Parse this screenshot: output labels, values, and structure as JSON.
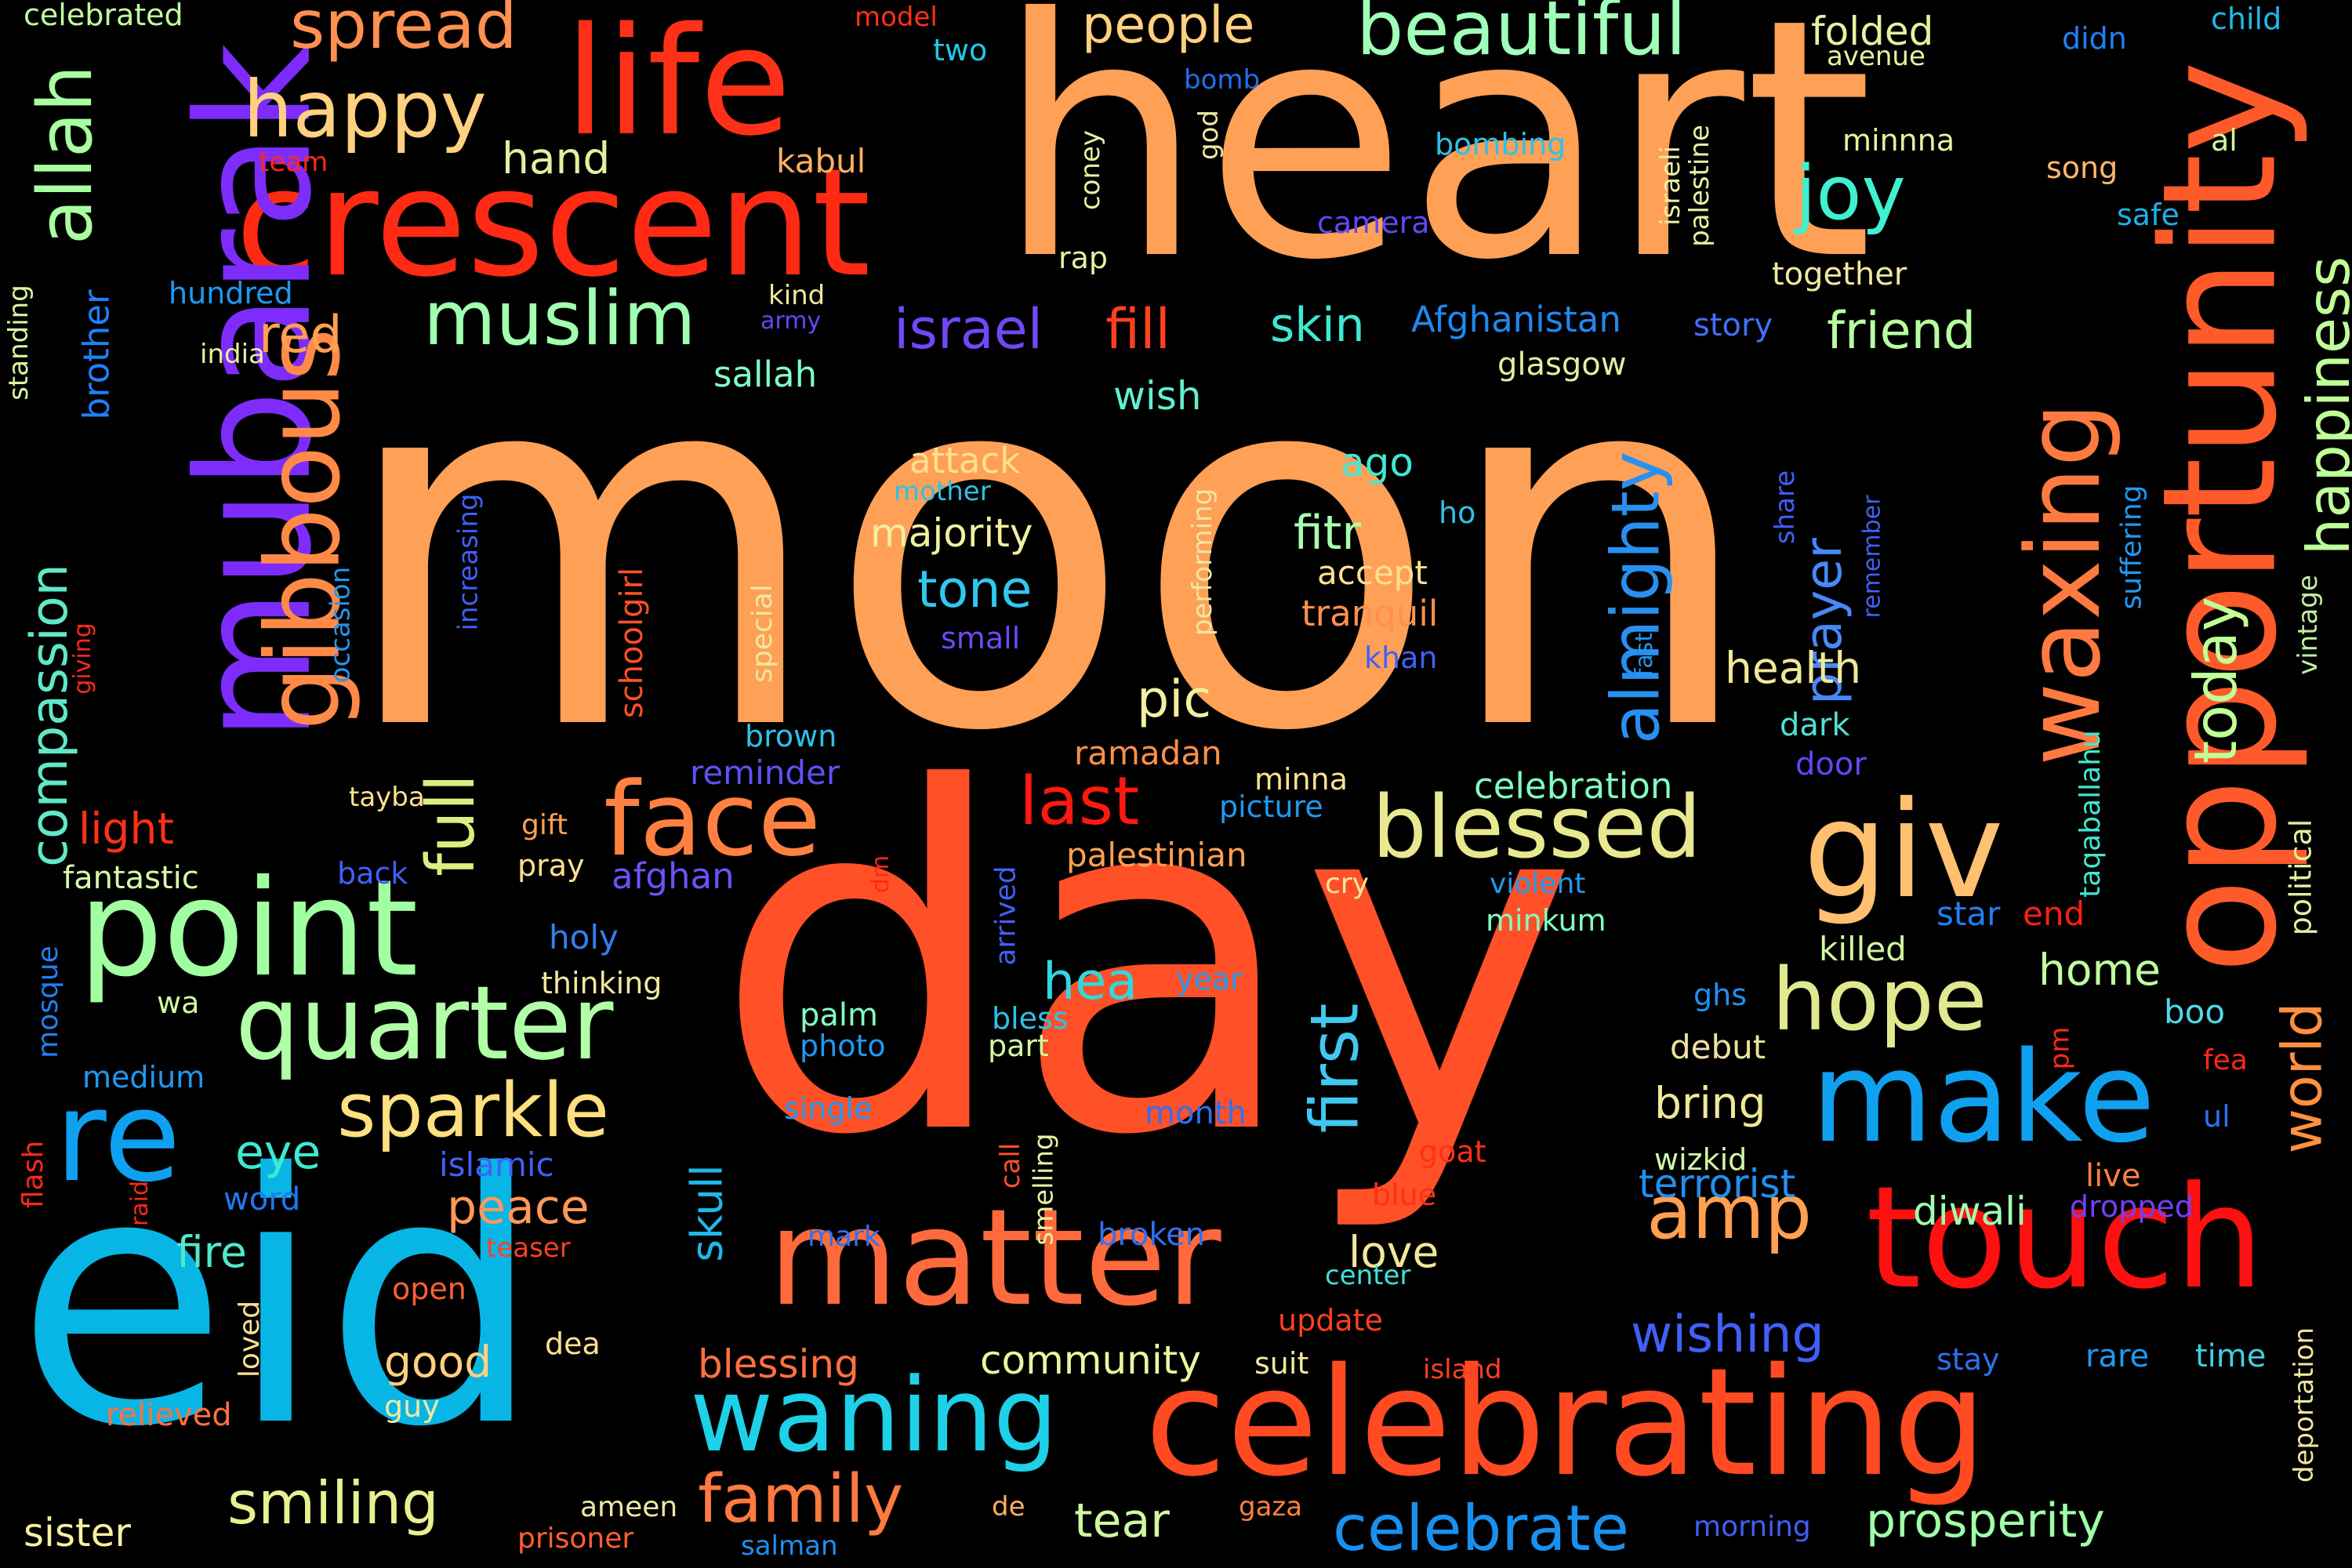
{
  "words": [
    {
      "text": "moon",
      "color": "#ffa057"
    },
    {
      "text": "day",
      "color": "#ff5028"
    },
    {
      "text": "heart",
      "color": "#ffa057"
    },
    {
      "text": "eid",
      "color": "#08b6e6"
    },
    {
      "text": "crescent",
      "color": "#ff2a14"
    },
    {
      "text": "mubarak",
      "color": "#7d2cfc"
    },
    {
      "text": "life",
      "color": "#ff3018"
    },
    {
      "text": "celebrating",
      "color": "#ff4a22"
    },
    {
      "text": "opportunity",
      "color": "#ff5a2a"
    },
    {
      "text": "touch",
      "color": "#ff1010"
    },
    {
      "text": "point",
      "color": "#a0ffa0"
    },
    {
      "text": "matter",
      "color": "#ff6a3c"
    },
    {
      "text": "giv",
      "color": "#ffc070"
    },
    {
      "text": "make",
      "color": "#10a0f0"
    },
    {
      "text": "face",
      "color": "#ff8040"
    },
    {
      "text": "waning",
      "color": "#1ed0e8"
    },
    {
      "text": "quarter",
      "color": "#b0ffa6"
    },
    {
      "text": "re",
      "color": "#10a0f0"
    },
    {
      "text": "gibbous",
      "color": "#ff8a48"
    },
    {
      "text": "waxing",
      "color": "#ff7a40"
    },
    {
      "text": "blessed",
      "color": "#e8e890"
    },
    {
      "text": "hope",
      "color": "#e0e890"
    },
    {
      "text": "happy",
      "color": "#ffd080"
    },
    {
      "text": "sparkle",
      "color": "#ffe080"
    },
    {
      "text": "beautiful",
      "color": "#a0ffb8"
    },
    {
      "text": "spread",
      "color": "#ff9050"
    },
    {
      "text": "muslim",
      "color": "#a0ffb0"
    },
    {
      "text": "joy",
      "color": "#40f0d0"
    },
    {
      "text": "allah",
      "color": "#a8ffa0"
    },
    {
      "text": "amp",
      "color": "#ffa050"
    },
    {
      "text": "family",
      "color": "#ff7a40"
    },
    {
      "text": "celebrate",
      "color": "#1890f0"
    },
    {
      "text": "full",
      "color": "#d8f080"
    },
    {
      "text": "last",
      "color": "#ff1810"
    },
    {
      "text": "almighty",
      "color": "#2890f0"
    },
    {
      "text": "today",
      "color": "#c0ff98"
    },
    {
      "text": "happiness",
      "color": "#c0ff98"
    },
    {
      "text": "smiling",
      "color": "#e8f090"
    },
    {
      "text": "first",
      "color": "#40c8f0"
    },
    {
      "text": "world",
      "color": "#ff9040"
    },
    {
      "text": "wishing",
      "color": "#4060f8"
    },
    {
      "text": "compassion",
      "color": "#60e8c8"
    },
    {
      "text": "prayer",
      "color": "#4888f8"
    },
    {
      "text": "fill",
      "color": "#ff4020"
    },
    {
      "text": "israel",
      "color": "#7048f8"
    },
    {
      "text": "prosperity",
      "color": "#a0ffa8"
    },
    {
      "text": "friend",
      "color": "#b8ffa0"
    },
    {
      "text": "red",
      "color": "#ffa050"
    },
    {
      "text": "people",
      "color": "#ffd080"
    },
    {
      "text": "hea",
      "color": "#30d8e0"
    },
    {
      "text": "tone",
      "color": "#30c8f0"
    },
    {
      "text": "peace",
      "color": "#ff9858"
    },
    {
      "text": "pic",
      "color": "#f0f0a0"
    },
    {
      "text": "eye",
      "color": "#40e8d0"
    },
    {
      "text": "tear",
      "color": "#d0f8a0"
    },
    {
      "text": "fitr",
      "color": "#a8ffb0"
    },
    {
      "text": "skin",
      "color": "#40e8d0"
    },
    {
      "text": "light",
      "color": "#ff3018"
    },
    {
      "text": "skull",
      "color": "#20b8e8"
    },
    {
      "text": "hand",
      "color": "#e0f0a0"
    },
    {
      "text": "home",
      "color": "#c0ffa0"
    },
    {
      "text": "bring",
      "color": "#f0e898"
    },
    {
      "text": "love",
      "color": "#f0e898"
    },
    {
      "text": "fire",
      "color": "#50e8c8"
    },
    {
      "text": "health",
      "color": "#f0e898"
    },
    {
      "text": "terrorist",
      "color": "#2090f0"
    },
    {
      "text": "diwali",
      "color": "#a0ffb0"
    },
    {
      "text": "good",
      "color": "#ffd080"
    },
    {
      "text": "blessing",
      "color": "#ff7040"
    },
    {
      "text": "community",
      "color": "#e8f8a0"
    },
    {
      "text": "sister",
      "color": "#f8f0a0"
    },
    {
      "text": "wish",
      "color": "#60f0d0"
    },
    {
      "text": "Afghanistan",
      "color": "#2088f0"
    },
    {
      "text": "folded",
      "color": "#e8f0a0"
    },
    {
      "text": "ago",
      "color": "#40e8d0"
    },
    {
      "text": "majority",
      "color": "#f0f0a0"
    },
    {
      "text": "attack",
      "color": "#ffe090"
    },
    {
      "text": "celebration",
      "color": "#80ffc0"
    },
    {
      "text": "sallah",
      "color": "#80ffc8"
    },
    {
      "text": "brother",
      "color": "#2080f8"
    },
    {
      "text": "ramadan",
      "color": "#ff9048"
    },
    {
      "text": "palestinian",
      "color": "#ffa050"
    },
    {
      "text": "afghan",
      "color": "#7050f8"
    },
    {
      "text": "reminder",
      "color": "#6050f8"
    },
    {
      "text": "accept",
      "color": "#ffe090"
    },
    {
      "text": "tranquil",
      "color": "#ff9050"
    },
    {
      "text": "killed",
      "color": "#d0f8a0"
    },
    {
      "text": "boo",
      "color": "#50d8e8"
    },
    {
      "text": "debut",
      "color": "#f0e0a0"
    },
    {
      "text": "wizkid",
      "color": "#d0f8a8"
    },
    {
      "text": "dropped",
      "color": "#7040f8"
    },
    {
      "text": "live",
      "color": "#ff8040"
    },
    {
      "text": "islamic",
      "color": "#4060f8"
    },
    {
      "text": "word",
      "color": "#2078f0"
    },
    {
      "text": "broken",
      "color": "#3070f0"
    },
    {
      "text": "month",
      "color": "#3070f0"
    },
    {
      "text": "star",
      "color": "#2080f0"
    },
    {
      "text": "end",
      "color": "#ff2010"
    },
    {
      "text": "political",
      "color": "#e0f0a0"
    },
    {
      "text": "vintage",
      "color": "#c0f0a0"
    },
    {
      "text": "suffering",
      "color": "#2098f0"
    },
    {
      "text": "taqaballahu",
      "color": "#40e8d0"
    },
    {
      "text": "door",
      "color": "#6048f8"
    },
    {
      "text": "dark",
      "color": "#50e0d8"
    },
    {
      "text": "minnna",
      "color": "#e8f0a0"
    },
    {
      "text": "song",
      "color": "#ffb868"
    },
    {
      "text": "al",
      "color": "#d0f8a0"
    },
    {
      "text": "safe",
      "color": "#20b0e8"
    },
    {
      "text": "together",
      "color": "#f0e8a0"
    },
    {
      "text": "story",
      "color": "#4070f8"
    },
    {
      "text": "glasgow",
      "color": "#e0f0a0"
    },
    {
      "text": "child",
      "color": "#20b8e8"
    },
    {
      "text": "didn",
      "color": "#2080f0"
    },
    {
      "text": "avenue",
      "color": "#e8f0a0"
    },
    {
      "text": "bomb",
      "color": "#2070f0"
    },
    {
      "text": "model",
      "color": "#ff3018"
    },
    {
      "text": "two",
      "color": "#20c8e8"
    },
    {
      "text": "kabul",
      "color": "#ffb060"
    },
    {
      "text": "team",
      "color": "#ff2818"
    },
    {
      "text": "hundred",
      "color": "#2098f0"
    },
    {
      "text": "kind",
      "color": "#f0e8a0"
    },
    {
      "text": "army",
      "color": "#6048f8"
    },
    {
      "text": "india",
      "color": "#e8f0a0"
    },
    {
      "text": "celebrated",
      "color": "#c0ffa0"
    },
    {
      "text": "standing",
      "color": "#d8f8a0"
    },
    {
      "text": "mosque",
      "color": "#2080f0"
    },
    {
      "text": "flash",
      "color": "#ff2818"
    },
    {
      "text": "raid",
      "color": "#ff2818"
    },
    {
      "text": "giving",
      "color": "#ff2818"
    },
    {
      "text": "occasion",
      "color": "#2098f0"
    },
    {
      "text": "increasing",
      "color": "#4060f8"
    },
    {
      "text": "schoolgirl",
      "color": "#ff5028"
    },
    {
      "text": "special",
      "color": "#f0e8a0"
    },
    {
      "text": "brown",
      "color": "#30c0e8"
    },
    {
      "text": "fantastic",
      "color": "#d8f8a8"
    },
    {
      "text": "back",
      "color": "#4060f8"
    },
    {
      "text": "tayba",
      "color": "#ffe090"
    },
    {
      "text": "gift",
      "color": "#ffa050"
    },
    {
      "text": "pray",
      "color": "#ffe090"
    },
    {
      "text": "dm",
      "color": "#ff2818"
    },
    {
      "text": "holy",
      "color": "#3080f0"
    },
    {
      "text": "thinking",
      "color": "#f0e8a0"
    },
    {
      "text": "wa",
      "color": "#d0f8a0"
    },
    {
      "text": "medium",
      "color": "#2098f0"
    },
    {
      "text": "open",
      "color": "#ff6030"
    },
    {
      "text": "teaser",
      "color": "#ff4020"
    },
    {
      "text": "relieved",
      "color": "#ff7040"
    },
    {
      "text": "loved",
      "color": "#ffe090"
    },
    {
      "text": "dea",
      "color": "#ffe090"
    },
    {
      "text": "guy",
      "color": "#f0e8a0"
    },
    {
      "text": "ameen",
      "color": "#f0e8a0"
    },
    {
      "text": "prisoner",
      "color": "#ff6030"
    },
    {
      "text": "salman",
      "color": "#2090f0"
    },
    {
      "text": "de",
      "color": "#ffb060"
    },
    {
      "text": "gaza",
      "color": "#ff8040"
    },
    {
      "text": "suit",
      "color": "#f0e8a0"
    },
    {
      "text": "island",
      "color": "#ff4020"
    },
    {
      "text": "update",
      "color": "#ff4020"
    },
    {
      "text": "center",
      "color": "#40e0d8"
    },
    {
      "text": "morning",
      "color": "#4060f8"
    },
    {
      "text": "stay",
      "color": "#3070f0"
    },
    {
      "text": "rare",
      "color": "#2098f0"
    },
    {
      "text": "time",
      "color": "#40d0e0"
    },
    {
      "text": "deportation",
      "color": "#f0e8a0"
    },
    {
      "text": "fea",
      "color": "#ff2818"
    },
    {
      "text": "ul",
      "color": "#3070f0"
    },
    {
      "text": "pm",
      "color": "#ff2818"
    },
    {
      "text": "ghs",
      "color": "#2090f0"
    },
    {
      "text": "goat",
      "color": "#ff3018"
    },
    {
      "text": "blue",
      "color": "#ff3018"
    },
    {
      "text": "smelling",
      "color": "#e8f0a0"
    },
    {
      "text": "call",
      "color": "#ff5028"
    },
    {
      "text": "mark",
      "color": "#3070f0"
    },
    {
      "text": "single",
      "color": "#2098f0"
    },
    {
      "text": "photo",
      "color": "#2098f0"
    },
    {
      "text": "palm",
      "color": "#80ffc0"
    },
    {
      "text": "bless",
      "color": "#30c0e8"
    },
    {
      "text": "part",
      "color": "#d0f8a0"
    },
    {
      "text": "arrived",
      "color": "#4060f8"
    },
    {
      "text": "year",
      "color": "#2098f0"
    },
    {
      "text": "cry",
      "color": "#f0e8a0"
    },
    {
      "text": "violent",
      "color": "#2098f0"
    },
    {
      "text": "minkum",
      "color": "#80ffc0"
    },
    {
      "text": "picture",
      "color": "#2098f0"
    },
    {
      "text": "minna",
      "color": "#ffe090"
    },
    {
      "text": "small",
      "color": "#7048f8"
    },
    {
      "text": "khan",
      "color": "#4060f8"
    },
    {
      "text": "fast",
      "color": "#2098f0"
    },
    {
      "text": "performing",
      "color": "#f0e8a0"
    },
    {
      "text": "ho",
      "color": "#30c0e8"
    },
    {
      "text": "mother",
      "color": "#30c0e8"
    },
    {
      "text": "share",
      "color": "#4060f8"
    },
    {
      "text": "remember",
      "color": "#4060f8"
    },
    {
      "text": "camera",
      "color": "#6048f8"
    },
    {
      "text": "bombing",
      "color": "#30c0e8"
    },
    {
      "text": "rap",
      "color": "#e8f0a0"
    },
    {
      "text": "coney",
      "color": "#e8f0a0"
    },
    {
      "text": "god",
      "color": "#f0e8a0"
    },
    {
      "text": "israeli",
      "color": "#e8f0a0"
    },
    {
      "text": "palestine",
      "color": "#e8f0a0"
    }
  ]
}
